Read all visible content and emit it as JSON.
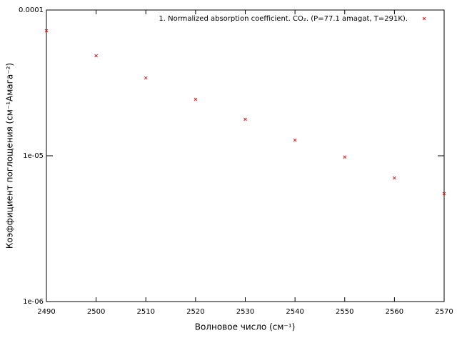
{
  "chart_data": {
    "type": "scatter",
    "xlabel": "Волновое число (см⁻¹)",
    "ylabel": "Коэффициент поглощения (см⁻¹Амага⁻²)",
    "y_scale": "log",
    "xlim": [
      2490,
      2570
    ],
    "xticks": [
      2490,
      2500,
      2510,
      2520,
      2530,
      2540,
      2550,
      2560,
      2570
    ],
    "ylim": [
      1e-06,
      0.0001
    ],
    "yticks": [
      {
        "value": 1e-06,
        "label": "1e-06"
      },
      {
        "value": 1e-05,
        "label": "1e-05"
      },
      {
        "value": 0.0001,
        "label": "0.0001"
      }
    ],
    "legend": "top-right",
    "series": [
      {
        "name": "1. Normalized absorption coefficient. CO₂. (P=77.1 amagat, T=291K).",
        "color": "#e02020",
        "x": [
          2490,
          2500,
          2510,
          2520,
          2530,
          2540,
          2550,
          2560,
          2570
        ],
        "values": [
          7.2e-05,
          4.85e-05,
          3.42e-05,
          2.44e-05,
          1.78e-05,
          1.28e-05,
          9.8e-06,
          7.05e-06,
          5.5e-06
        ]
      }
    ]
  }
}
